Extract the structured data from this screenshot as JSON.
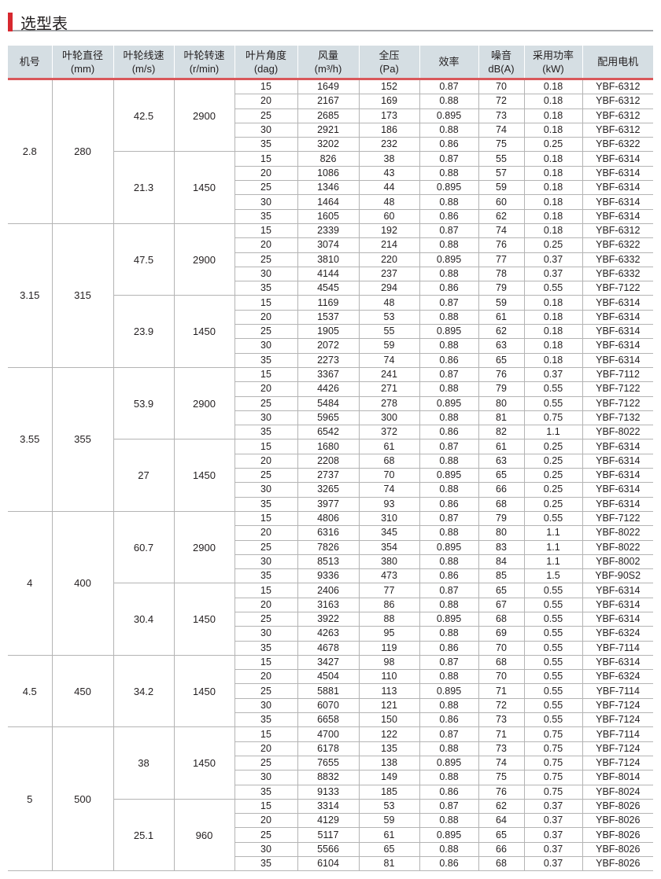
{
  "title": "选型表",
  "colors": {
    "accent": "#d7282f",
    "header_bg": "#d5dee3",
    "header_rule": "#d9585b"
  },
  "headers": [
    [
      "机号",
      ""
    ],
    [
      "叶轮直径",
      "(mm)"
    ],
    [
      "叶轮线速",
      "(m/s)"
    ],
    [
      "叶轮转速",
      "(r/min)"
    ],
    [
      "叶片角度",
      "(dag)"
    ],
    [
      "风量",
      "(m³/h)"
    ],
    [
      "全压",
      "(Pa)"
    ],
    [
      "效率",
      ""
    ],
    [
      "噪音",
      "dB(A)"
    ],
    [
      "采用功率",
      "(kW)"
    ],
    [
      "配用电机",
      ""
    ]
  ],
  "groups": [
    {
      "machine": "2.8",
      "diameter": "280",
      "speeds": [
        {
          "tip_speed": "42.5",
          "rpm": "2900",
          "rows": [
            [
              "15",
              "1649",
              "152",
              "0.87",
              "70",
              "0.18",
              "YBF-6312"
            ],
            [
              "20",
              "2167",
              "169",
              "0.88",
              "72",
              "0.18",
              "YBF-6312"
            ],
            [
              "25",
              "2685",
              "173",
              "0.895",
              "73",
              "0.18",
              "YBF-6312"
            ],
            [
              "30",
              "2921",
              "186",
              "0.88",
              "74",
              "0.18",
              "YBF-6312"
            ],
            [
              "35",
              "3202",
              "232",
              "0.86",
              "75",
              "0.25",
              "YBF-6322"
            ]
          ]
        },
        {
          "tip_speed": "21.3",
          "rpm": "1450",
          "rows": [
            [
              "15",
              "826",
              "38",
              "0.87",
              "55",
              "0.18",
              "YBF-6314"
            ],
            [
              "20",
              "1086",
              "43",
              "0.88",
              "57",
              "0.18",
              "YBF-6314"
            ],
            [
              "25",
              "1346",
              "44",
              "0.895",
              "59",
              "0.18",
              "YBF-6314"
            ],
            [
              "30",
              "1464",
              "48",
              "0.88",
              "60",
              "0.18",
              "YBF-6314"
            ],
            [
              "35",
              "1605",
              "60",
              "0.86",
              "62",
              "0.18",
              "YBF-6314"
            ]
          ]
        }
      ]
    },
    {
      "machine": "3.15",
      "diameter": "315",
      "speeds": [
        {
          "tip_speed": "47.5",
          "rpm": "2900",
          "rows": [
            [
              "15",
              "2339",
              "192",
              "0.87",
              "74",
              "0.18",
              "YBF-6312"
            ],
            [
              "20",
              "3074",
              "214",
              "0.88",
              "76",
              "0.25",
              "YBF-6322"
            ],
            [
              "25",
              "3810",
              "220",
              "0.895",
              "77",
              "0.37",
              "YBF-6332"
            ],
            [
              "30",
              "4144",
              "237",
              "0.88",
              "78",
              "0.37",
              "YBF-6332"
            ],
            [
              "35",
              "4545",
              "294",
              "0.86",
              "79",
              "0.55",
              "YBF-7122"
            ]
          ]
        },
        {
          "tip_speed": "23.9",
          "rpm": "1450",
          "rows": [
            [
              "15",
              "1169",
              "48",
              "0.87",
              "59",
              "0.18",
              "YBF-6314"
            ],
            [
              "20",
              "1537",
              "53",
              "0.88",
              "61",
              "0.18",
              "YBF-6314"
            ],
            [
              "25",
              "1905",
              "55",
              "0.895",
              "62",
              "0.18",
              "YBF-6314"
            ],
            [
              "30",
              "2072",
              "59",
              "0.88",
              "63",
              "0.18",
              "YBF-6314"
            ],
            [
              "35",
              "2273",
              "74",
              "0.86",
              "65",
              "0.18",
              "YBF-6314"
            ]
          ]
        }
      ]
    },
    {
      "machine": "3.55",
      "diameter": "355",
      "speeds": [
        {
          "tip_speed": "53.9",
          "rpm": "2900",
          "rows": [
            [
              "15",
              "3367",
              "241",
              "0.87",
              "76",
              "0.37",
              "YBF-7112"
            ],
            [
              "20",
              "4426",
              "271",
              "0.88",
              "79",
              "0.55",
              "YBF-7122"
            ],
            [
              "25",
              "5484",
              "278",
              "0.895",
              "80",
              "0.55",
              "YBF-7122"
            ],
            [
              "30",
              "5965",
              "300",
              "0.88",
              "81",
              "0.75",
              "YBF-7132"
            ],
            [
              "35",
              "6542",
              "372",
              "0.86",
              "82",
              "1.1",
              "YBF-8022"
            ]
          ]
        },
        {
          "tip_speed": "27",
          "rpm": "1450",
          "rows": [
            [
              "15",
              "1680",
              "61",
              "0.87",
              "61",
              "0.25",
              "YBF-6314"
            ],
            [
              "20",
              "2208",
              "68",
              "0.88",
              "63",
              "0.25",
              "YBF-6314"
            ],
            [
              "25",
              "2737",
              "70",
              "0.895",
              "65",
              "0.25",
              "YBF-6314"
            ],
            [
              "30",
              "3265",
              "74",
              "0.88",
              "66",
              "0.25",
              "YBF-6314"
            ],
            [
              "35",
              "3977",
              "93",
              "0.86",
              "68",
              "0.25",
              "YBF-6314"
            ]
          ]
        }
      ]
    },
    {
      "machine": "4",
      "diameter": "400",
      "speeds": [
        {
          "tip_speed": "60.7",
          "rpm": "2900",
          "rows": [
            [
              "15",
              "4806",
              "310",
              "0.87",
              "79",
              "0.55",
              "YBF-7122"
            ],
            [
              "20",
              "6316",
              "345",
              "0.88",
              "80",
              "1.1",
              "YBF-8022"
            ],
            [
              "25",
              "7826",
              "354",
              "0.895",
              "83",
              "1.1",
              "YBF-8022"
            ],
            [
              "30",
              "8513",
              "380",
              "0.88",
              "84",
              "1.1",
              "YBF-8002"
            ],
            [
              "35",
              "9336",
              "473",
              "0.86",
              "85",
              "1.5",
              "YBF-90S2"
            ]
          ]
        },
        {
          "tip_speed": "30.4",
          "rpm": "1450",
          "rows": [
            [
              "15",
              "2406",
              "77",
              "0.87",
              "65",
              "0.55",
              "YBF-6314"
            ],
            [
              "20",
              "3163",
              "86",
              "0.88",
              "67",
              "0.55",
              "YBF-6314"
            ],
            [
              "25",
              "3922",
              "88",
              "0.895",
              "68",
              "0.55",
              "YBF-6314"
            ],
            [
              "30",
              "4263",
              "95",
              "0.88",
              "69",
              "0.55",
              "YBF-6324"
            ],
            [
              "35",
              "4678",
              "119",
              "0.86",
              "70",
              "0.55",
              "YBF-7114"
            ]
          ]
        }
      ]
    },
    {
      "machine": "4.5",
      "diameter": "450",
      "speeds": [
        {
          "tip_speed": "34.2",
          "rpm": "1450",
          "rows": [
            [
              "15",
              "3427",
              "98",
              "0.87",
              "68",
              "0.55",
              "YBF-6314"
            ],
            [
              "20",
              "4504",
              "110",
              "0.88",
              "70",
              "0.55",
              "YBF-6324"
            ],
            [
              "25",
              "5881",
              "113",
              "0.895",
              "71",
              "0.55",
              "YBF-7114"
            ],
            [
              "30",
              "6070",
              "121",
              "0.88",
              "72",
              "0.55",
              "YBF-7124"
            ],
            [
              "35",
              "6658",
              "150",
              "0.86",
              "73",
              "0.55",
              "YBF-7124"
            ]
          ]
        }
      ]
    },
    {
      "machine": "5",
      "diameter": "500",
      "speeds": [
        {
          "tip_speed": "38",
          "rpm": "1450",
          "rows": [
            [
              "15",
              "4700",
              "122",
              "0.87",
              "71",
              "0.75",
              "YBF-7114"
            ],
            [
              "20",
              "6178",
              "135",
              "0.88",
              "73",
              "0.75",
              "YBF-7124"
            ],
            [
              "25",
              "7655",
              "138",
              "0.895",
              "74",
              "0.75",
              "YBF-7124"
            ],
            [
              "30",
              "8832",
              "149",
              "0.88",
              "75",
              "0.75",
              "YBF-8014"
            ],
            [
              "35",
              "9133",
              "185",
              "0.86",
              "76",
              "0.75",
              "YBF-8024"
            ]
          ]
        },
        {
          "tip_speed": "25.1",
          "rpm": "960",
          "rows": [
            [
              "15",
              "3314",
              "53",
              "0.87",
              "62",
              "0.37",
              "YBF-8026"
            ],
            [
              "20",
              "4129",
              "59",
              "0.88",
              "64",
              "0.37",
              "YBF-8026"
            ],
            [
              "25",
              "5117",
              "61",
              "0.895",
              "65",
              "0.37",
              "YBF-8026"
            ],
            [
              "30",
              "5566",
              "65",
              "0.88",
              "66",
              "0.37",
              "YBF-8026"
            ],
            [
              "35",
              "6104",
              "81",
              "0.86",
              "68",
              "0.37",
              "YBF-8026"
            ]
          ]
        }
      ]
    }
  ]
}
